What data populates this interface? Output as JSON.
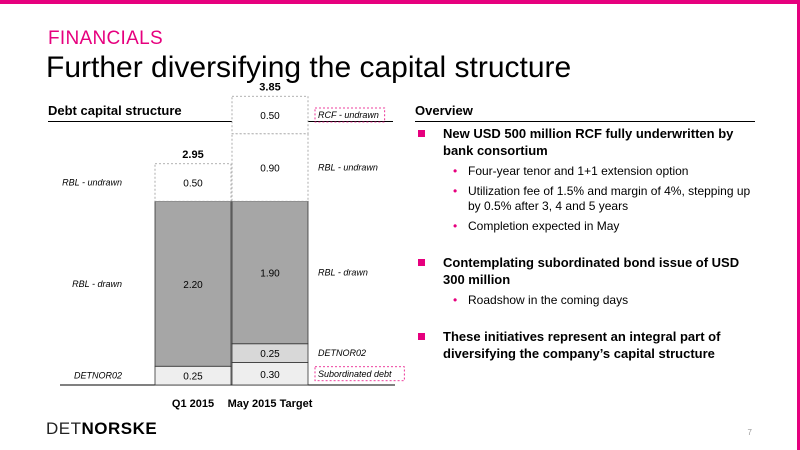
{
  "header": {
    "section": "FINANCIALS",
    "title": "Further diversifying the capital structure"
  },
  "left_panel": {
    "heading": "Debt capital structure"
  },
  "right_panel": {
    "heading": "Overview"
  },
  "chart_data": {
    "type": "bar",
    "stacked": true,
    "title": "Debt capital structure",
    "categories": [
      "Q1 2015",
      "May 2015 Target"
    ],
    "totals": [
      "2.95",
      "3.85"
    ],
    "series": [
      {
        "key": "detnor02",
        "values": [
          0.25,
          0.3
        ],
        "labels": [
          "0.25",
          "0.30"
        ],
        "fill": "#eeeeee",
        "dashed": false,
        "bar_labels": [
          "DETNOR02",
          "Subordinated debt"
        ],
        "boxed": [
          false,
          true
        ]
      },
      {
        "key": "detnor02_b",
        "values": [
          0,
          0.25
        ],
        "labels": [
          "",
          "0.25"
        ],
        "fill": "#d8d8d8",
        "dashed": false,
        "bar_labels": [
          "",
          "DETNOR02"
        ],
        "boxed": [
          false,
          false
        ]
      },
      {
        "key": "rbl_drawn",
        "values": [
          2.2,
          1.9
        ],
        "labels": [
          "2.20",
          "1.90"
        ],
        "fill": "#a6a6a6",
        "dashed": false,
        "bar_labels": [
          "RBL - drawn",
          "RBL - drawn"
        ],
        "boxed": [
          false,
          false
        ]
      },
      {
        "key": "rbl_undrawn",
        "values": [
          0.5,
          0.9
        ],
        "labels": [
          "0.50",
          "0.90"
        ],
        "fill": "#ffffff",
        "dashed": true,
        "bar_labels": [
          "RBL - undrawn",
          "RBL - undrawn"
        ],
        "boxed": [
          false,
          false
        ]
      },
      {
        "key": "rcf_undrawn",
        "values": [
          0,
          0.5
        ],
        "labels": [
          "",
          "0.50"
        ],
        "fill": "#ffffff",
        "dashed": true,
        "bar_labels": [
          "",
          "RCF - undrawn"
        ],
        "boxed": [
          false,
          true
        ]
      }
    ],
    "ylim": [
      0,
      4.2
    ],
    "grid": false
  },
  "colors": {
    "accent": "#e6007e"
  },
  "overview": [
    {
      "text": "New USD 500 million RCF fully underwritten by bank consortium",
      "subs": [
        "Four-year tenor and 1+1 extension option",
        "Utilization fee of 1.5% and margin of 4%, stepping up by 0.5% after 3, 4 and 5 years",
        "Completion expected in May"
      ]
    },
    {
      "text": "Contemplating subordinated bond issue of USD 300 million",
      "subs": [
        "Roadshow in the coming days"
      ]
    },
    {
      "text": "These initiatives represent an integral part of diversifying the company’s capital structure",
      "subs": []
    }
  ],
  "footer": {
    "logo_thin": "DET",
    "logo_bold": "NORSKE",
    "page": "7"
  }
}
